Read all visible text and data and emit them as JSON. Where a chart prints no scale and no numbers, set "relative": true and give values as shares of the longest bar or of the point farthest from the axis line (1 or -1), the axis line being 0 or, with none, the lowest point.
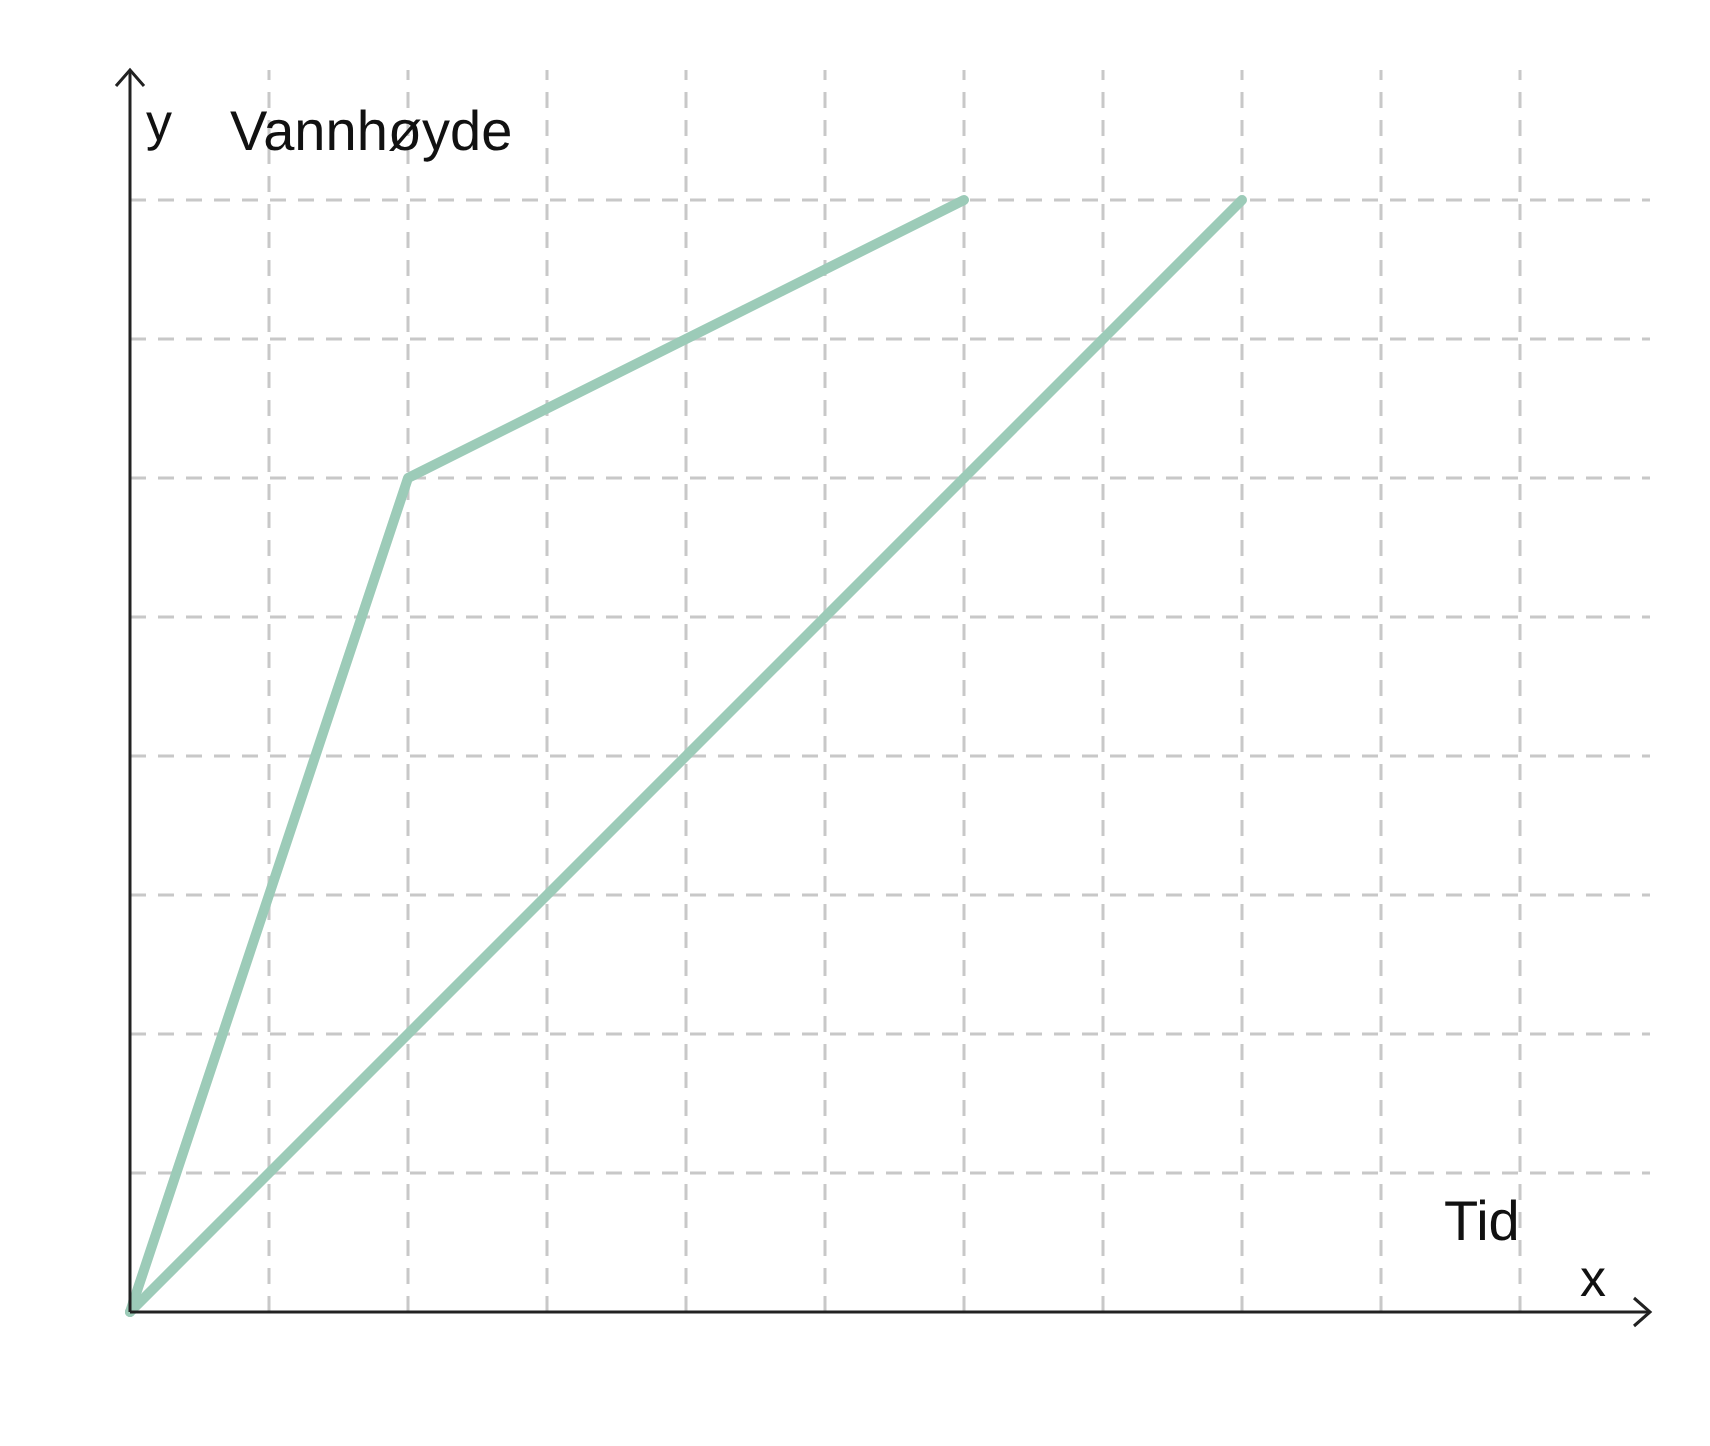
{
  "chart_data": {
    "type": "line",
    "relative": true,
    "xlabel": "Tid",
    "ylabel": "Vannhøyde",
    "annotations": [
      "y",
      "x"
    ],
    "grid": true,
    "categories": [
      null,
      null,
      null,
      null,
      null,
      null,
      null,
      null,
      null,
      null,
      null
    ],
    "series": [
      {
        "color": "#9ccbb8",
        "values": [
          0,
          0.375,
          0.75,
          0.8125,
          0.875,
          0.9375,
          1,
          null,
          null,
          null,
          null
        ]
      },
      {
        "color": "#9ccbb8",
        "values": [
          0,
          0.125,
          0.25,
          0.375,
          0.5,
          0.625,
          0.75,
          0.875,
          1,
          null,
          null
        ]
      }
    ]
  }
}
